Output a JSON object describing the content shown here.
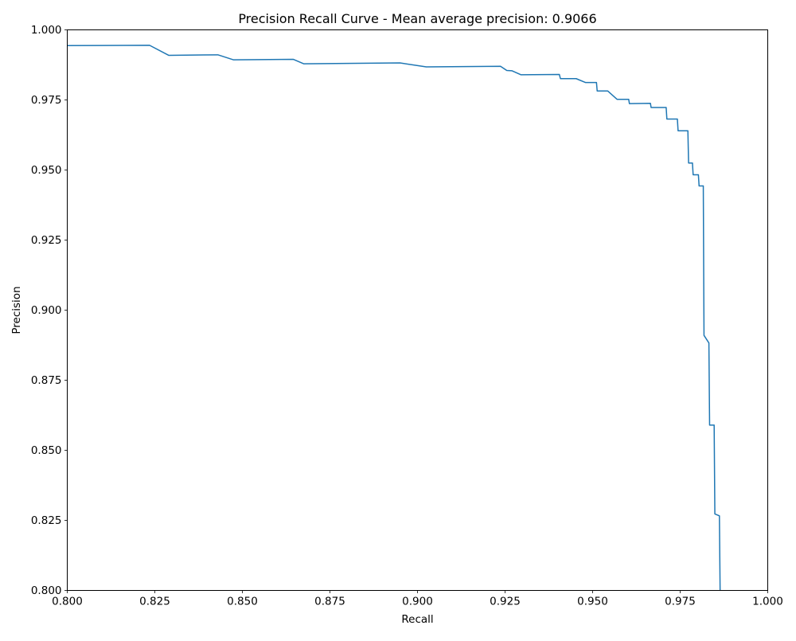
{
  "chart_data": {
    "type": "line",
    "title": "Precision Recall Curve - Mean average precision: 0.9066",
    "xlabel": "Recall",
    "ylabel": "Precision",
    "xlim": [
      0.8,
      1.0
    ],
    "ylim": [
      0.8,
      1.0
    ],
    "xticks": [
      "0.800",
      "0.825",
      "0.850",
      "0.875",
      "0.900",
      "0.925",
      "0.950",
      "0.975",
      "1.000"
    ],
    "yticks": [
      "0.800",
      "0.825",
      "0.850",
      "0.875",
      "0.900",
      "0.925",
      "0.950",
      "0.975",
      "1.000"
    ],
    "grid": false,
    "legend": "none",
    "line_color": "#1f77b4",
    "series": [
      {
        "x": [
          0.8,
          0.8235,
          0.829,
          0.843,
          0.8475,
          0.8645,
          0.8675,
          0.895,
          0.9025,
          0.9237,
          0.9255,
          0.927,
          0.9295,
          0.9405,
          0.9408,
          0.9453,
          0.948,
          0.9511,
          0.9513,
          0.9543,
          0.957,
          0.9603,
          0.9605,
          0.9665,
          0.9667,
          0.971,
          0.9712,
          0.9742,
          0.9744,
          0.9772,
          0.9774,
          0.9785,
          0.9787,
          0.9802,
          0.9804,
          0.9816,
          0.9818,
          0.9832,
          0.9834,
          0.9847,
          0.9849,
          0.9862,
          0.9864
        ],
        "y": [
          0.9944,
          0.9945,
          0.9909,
          0.9911,
          0.9893,
          0.9895,
          0.9879,
          0.9882,
          0.9868,
          0.987,
          0.9855,
          0.9854,
          0.984,
          0.9841,
          0.9826,
          0.9826,
          0.9812,
          0.9812,
          0.9782,
          0.9782,
          0.9752,
          0.9752,
          0.9737,
          0.9738,
          0.9723,
          0.9723,
          0.9682,
          0.9682,
          0.964,
          0.964,
          0.9525,
          0.9525,
          0.9483,
          0.9483,
          0.9443,
          0.9443,
          0.891,
          0.8883,
          0.859,
          0.859,
          0.8273,
          0.8266,
          0.8
        ]
      }
    ]
  }
}
